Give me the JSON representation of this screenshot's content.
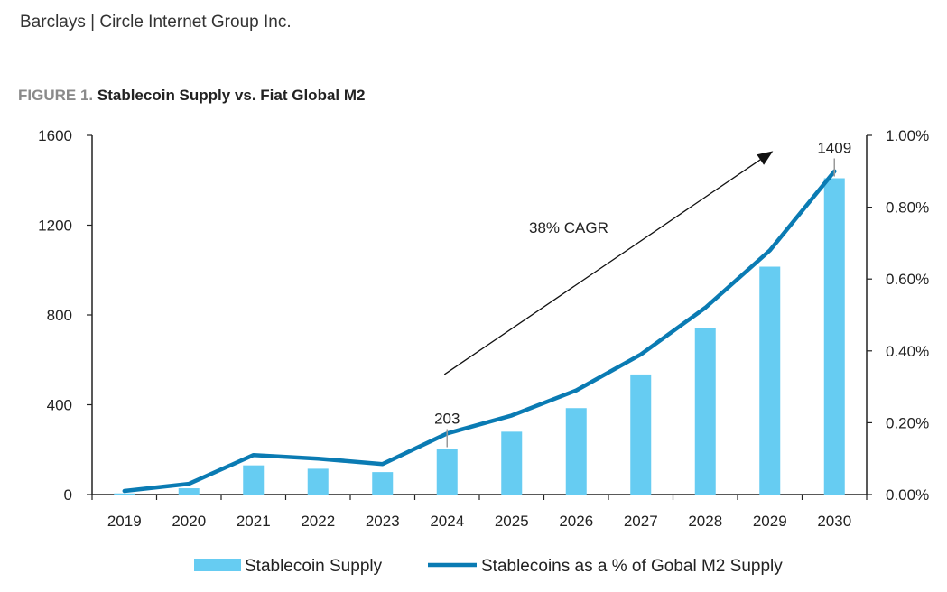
{
  "header": {
    "source": "Barclays | Circle Internet Group Inc.",
    "figure_label": "FIGURE 1.",
    "figure_title": "Stablecoin Supply vs. Fiat Global M2"
  },
  "colors": {
    "bar": "#66ccf2",
    "line": "#0a7bb3",
    "axis": "#222222",
    "arrow": "#111111"
  },
  "chart_data": {
    "type": "bar",
    "title": "Stablecoin Supply vs. Fiat Global M2",
    "categories": [
      "2019",
      "2020",
      "2021",
      "2022",
      "2023",
      "2024",
      "2025",
      "2026",
      "2027",
      "2028",
      "2029",
      "2030"
    ],
    "series": [
      {
        "name": "Stablecoin Supply",
        "type": "bar",
        "axis": "left",
        "values": [
          5,
          28,
          130,
          115,
          100,
          203,
          280,
          385,
          535,
          740,
          1015,
          1409
        ]
      },
      {
        "name": "Stablecoins as a % of Gobal M2 Supply",
        "type": "line",
        "axis": "right",
        "values": [
          0.0001,
          0.0003,
          0.0011,
          0.001,
          0.00085,
          0.0017,
          0.0022,
          0.0029,
          0.0039,
          0.0052,
          0.0068,
          0.009
        ]
      }
    ],
    "left_axis": {
      "range": [
        0,
        1600
      ],
      "ticks": [
        "0",
        "400",
        "800",
        "1200",
        "1600"
      ]
    },
    "right_axis": {
      "range": [
        0,
        0.01
      ],
      "ticks": [
        "0.00%",
        "0.20%",
        "0.40%",
        "0.60%",
        "0.80%",
        "1.00%"
      ]
    },
    "data_labels": [
      {
        "category": "2024",
        "text": "203"
      },
      {
        "category": "2030",
        "text": "1409"
      }
    ],
    "annotation": {
      "text": "38% CAGR",
      "arrow_from": {
        "category": "2024",
        "value": 535
      },
      "arrow_to": {
        "category": "2030",
        "value": 1530
      }
    },
    "legend_position": "bottom"
  }
}
